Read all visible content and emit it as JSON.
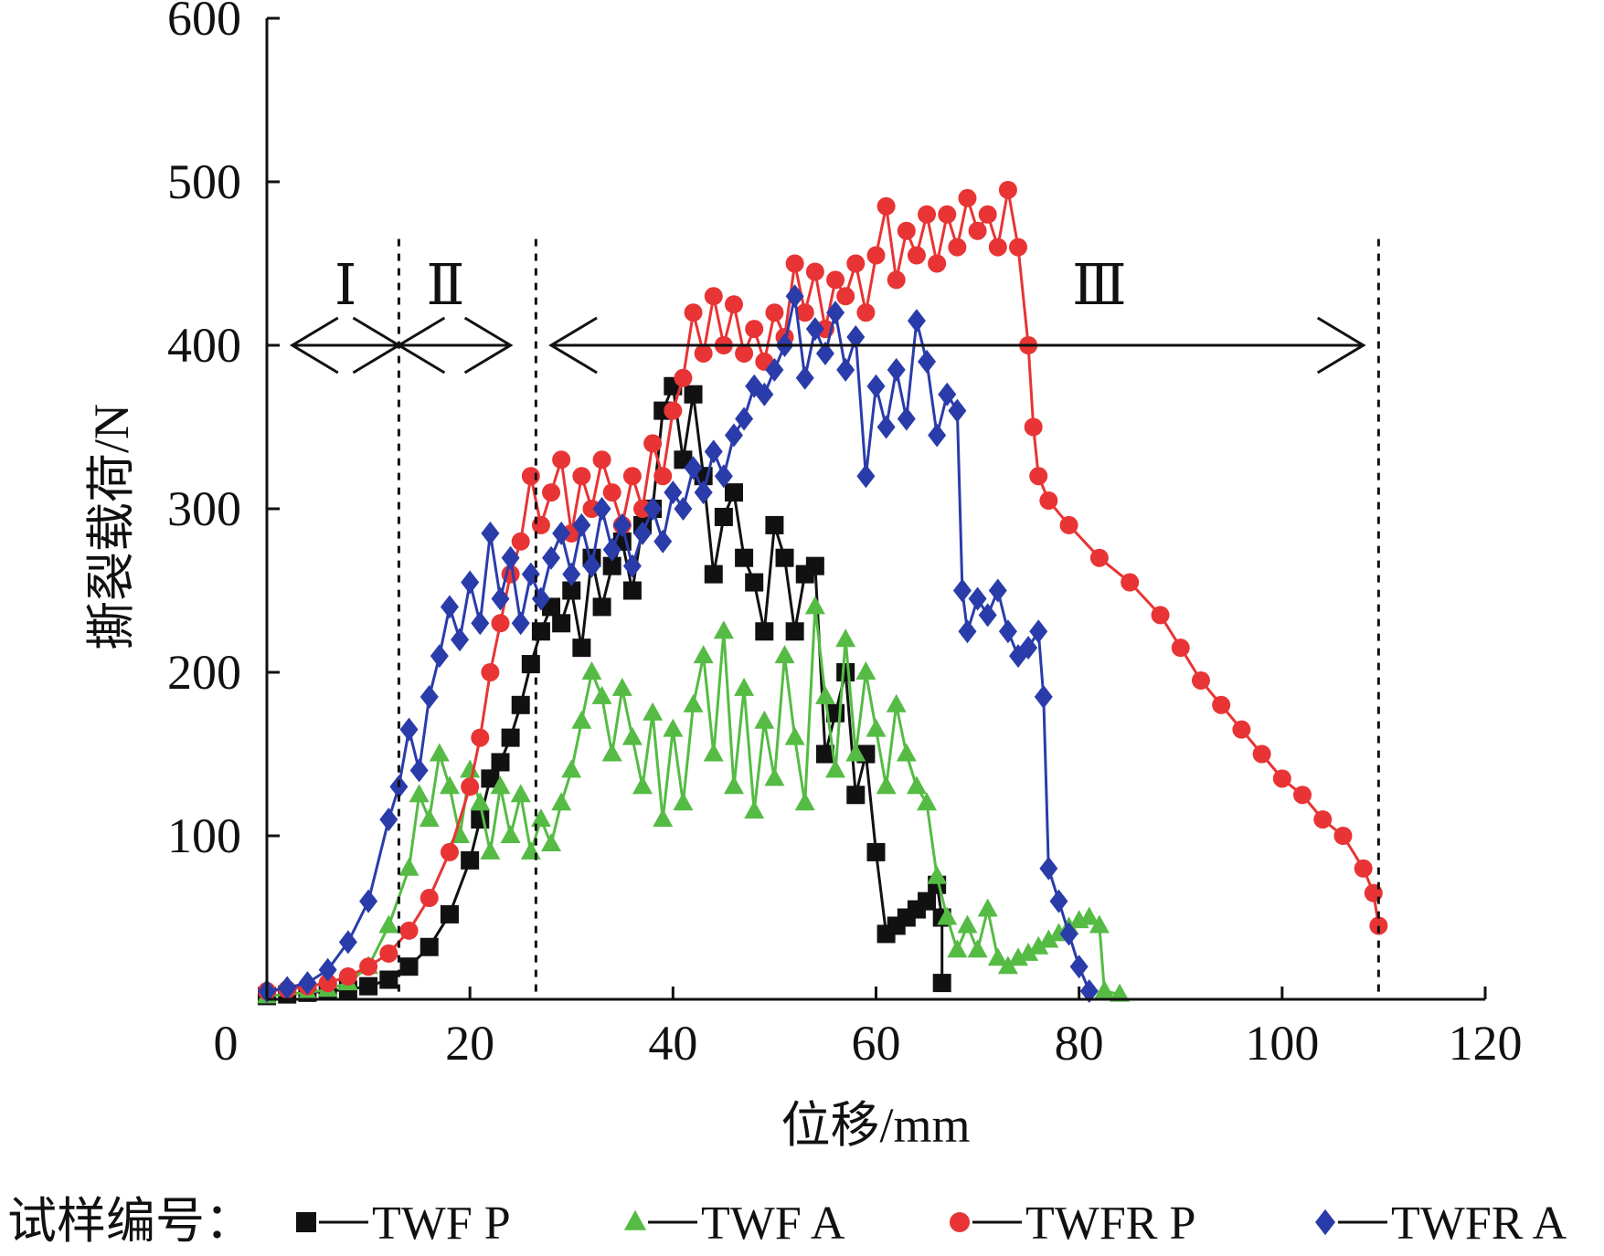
{
  "chart_data": {
    "type": "line",
    "xlabel": "位移/mm",
    "ylabel": "撕裂载荷/N",
    "xlim": [
      0,
      120
    ],
    "ylim": [
      0,
      600
    ],
    "x_ticks": [
      "0",
      "20",
      "40",
      "60",
      "80",
      "100",
      "120"
    ],
    "y_ticks": [
      "100",
      "200",
      "300",
      "400",
      "500",
      "600"
    ],
    "grid": false,
    "legend_position": "bottom",
    "legend_prefix": "试样编号：",
    "regions": [
      {
        "label": "Ⅰ",
        "from": 2.5,
        "to": 13
      },
      {
        "label": "Ⅱ",
        "from": 13,
        "to": 24
      },
      {
        "label": "Ⅲ",
        "from": 28,
        "to": 108
      }
    ],
    "region_boundaries_x": [
      13,
      26.5,
      109.5
    ],
    "region_arrow_y": 400,
    "series": [
      {
        "name": "TWF P",
        "color": "#111111",
        "marker": "square",
        "points": [
          [
            0,
            2
          ],
          [
            2,
            3
          ],
          [
            4,
            4
          ],
          [
            6,
            5
          ],
          [
            8,
            6
          ],
          [
            10,
            8
          ],
          [
            12,
            12
          ],
          [
            14,
            20
          ],
          [
            16,
            32
          ],
          [
            18,
            52
          ],
          [
            20,
            85
          ],
          [
            21,
            110
          ],
          [
            22,
            135
          ],
          [
            23,
            145
          ],
          [
            24,
            160
          ],
          [
            25,
            180
          ],
          [
            26,
            205
          ],
          [
            27,
            225
          ],
          [
            28,
            240
          ],
          [
            29,
            230
          ],
          [
            30,
            250
          ],
          [
            31,
            215
          ],
          [
            32,
            270
          ],
          [
            33,
            240
          ],
          [
            34,
            265
          ],
          [
            35,
            280
          ],
          [
            36,
            250
          ],
          [
            37,
            290
          ],
          [
            38,
            300
          ],
          [
            39,
            360
          ],
          [
            40,
            375
          ],
          [
            41,
            330
          ],
          [
            42,
            370
          ],
          [
            43,
            320
          ],
          [
            44,
            260
          ],
          [
            45,
            295
          ],
          [
            46,
            310
          ],
          [
            47,
            270
          ],
          [
            48,
            255
          ],
          [
            49,
            225
          ],
          [
            50,
            290
          ],
          [
            51,
            270
          ],
          [
            52,
            225
          ],
          [
            53,
            260
          ],
          [
            54,
            265
          ],
          [
            55,
            150
          ],
          [
            56,
            175
          ],
          [
            57,
            200
          ],
          [
            58,
            125
          ],
          [
            59,
            150
          ],
          [
            60,
            90
          ],
          [
            61,
            40
          ],
          [
            62,
            45
          ],
          [
            63,
            50
          ],
          [
            64,
            55
          ],
          [
            65,
            60
          ],
          [
            66,
            70
          ],
          [
            66.5,
            50
          ],
          [
            66.5,
            10
          ]
        ]
      },
      {
        "name": "TWF A",
        "color": "#55bb44",
        "marker": "triangle",
        "points": [
          [
            0,
            2
          ],
          [
            4,
            4
          ],
          [
            6,
            6
          ],
          [
            8,
            10
          ],
          [
            10,
            20
          ],
          [
            12,
            45
          ],
          [
            14,
            80
          ],
          [
            15,
            125
          ],
          [
            16,
            110
          ],
          [
            17,
            150
          ],
          [
            18,
            130
          ],
          [
            19,
            100
          ],
          [
            20,
            140
          ],
          [
            21,
            120
          ],
          [
            22,
            90
          ],
          [
            23,
            130
          ],
          [
            24,
            100
          ],
          [
            25,
            125
          ],
          [
            26,
            90
          ],
          [
            27,
            110
          ],
          [
            28,
            95
          ],
          [
            29,
            120
          ],
          [
            30,
            140
          ],
          [
            31,
            170
          ],
          [
            32,
            200
          ],
          [
            33,
            185
          ],
          [
            34,
            150
          ],
          [
            35,
            190
          ],
          [
            36,
            160
          ],
          [
            37,
            130
          ],
          [
            38,
            175
          ],
          [
            39,
            110
          ],
          [
            40,
            165
          ],
          [
            41,
            120
          ],
          [
            42,
            180
          ],
          [
            43,
            210
          ],
          [
            44,
            150
          ],
          [
            45,
            225
          ],
          [
            46,
            130
          ],
          [
            47,
            190
          ],
          [
            48,
            115
          ],
          [
            49,
            170
          ],
          [
            50,
            135
          ],
          [
            51,
            210
          ],
          [
            52,
            160
          ],
          [
            53,
            120
          ],
          [
            54,
            240
          ],
          [
            55,
            185
          ],
          [
            56,
            140
          ],
          [
            57,
            220
          ],
          [
            58,
            150
          ],
          [
            59,
            200
          ],
          [
            60,
            165
          ],
          [
            61,
            130
          ],
          [
            62,
            180
          ],
          [
            63,
            150
          ],
          [
            64,
            130
          ],
          [
            65,
            120
          ],
          [
            66,
            75
          ],
          [
            67,
            50
          ],
          [
            68,
            30
          ],
          [
            69,
            45
          ],
          [
            70,
            30
          ],
          [
            71,
            55
          ],
          [
            72,
            25
          ],
          [
            73,
            20
          ],
          [
            74,
            25
          ],
          [
            75,
            28
          ],
          [
            76,
            32
          ],
          [
            77,
            36
          ],
          [
            78,
            40
          ],
          [
            79,
            44
          ],
          [
            80,
            48
          ],
          [
            81,
            50
          ],
          [
            82,
            45
          ],
          [
            82.5,
            5
          ],
          [
            84,
            3
          ]
        ]
      },
      {
        "name": "TWFR P",
        "color": "#e83434",
        "marker": "circle",
        "points": [
          [
            0,
            5
          ],
          [
            2,
            6
          ],
          [
            4,
            8
          ],
          [
            6,
            10
          ],
          [
            8,
            14
          ],
          [
            10,
            20
          ],
          [
            12,
            28
          ],
          [
            14,
            42
          ],
          [
            16,
            62
          ],
          [
            18,
            90
          ],
          [
            20,
            130
          ],
          [
            21,
            160
          ],
          [
            22,
            200
          ],
          [
            23,
            230
          ],
          [
            24,
            260
          ],
          [
            25,
            280
          ],
          [
            26,
            320
          ],
          [
            27,
            290
          ],
          [
            28,
            310
          ],
          [
            29,
            330
          ],
          [
            30,
            285
          ],
          [
            31,
            320
          ],
          [
            32,
            300
          ],
          [
            33,
            330
          ],
          [
            34,
            310
          ],
          [
            35,
            290
          ],
          [
            36,
            320
          ],
          [
            37,
            300
          ],
          [
            38,
            340
          ],
          [
            39,
            320
          ],
          [
            40,
            360
          ],
          [
            41,
            380
          ],
          [
            42,
            420
          ],
          [
            43,
            395
          ],
          [
            44,
            430
          ],
          [
            45,
            400
          ],
          [
            46,
            425
          ],
          [
            47,
            395
          ],
          [
            48,
            410
          ],
          [
            49,
            390
          ],
          [
            50,
            420
          ],
          [
            51,
            405
          ],
          [
            52,
            450
          ],
          [
            53,
            420
          ],
          [
            54,
            445
          ],
          [
            55,
            410
          ],
          [
            56,
            440
          ],
          [
            57,
            430
          ],
          [
            58,
            450
          ],
          [
            59,
            420
          ],
          [
            60,
            455
          ],
          [
            61,
            485
          ],
          [
            62,
            440
          ],
          [
            63,
            470
          ],
          [
            64,
            455
          ],
          [
            65,
            480
          ],
          [
            66,
            450
          ],
          [
            67,
            480
          ],
          [
            68,
            460
          ],
          [
            69,
            490
          ],
          [
            70,
            470
          ],
          [
            71,
            480
          ],
          [
            72,
            460
          ],
          [
            73,
            495
          ],
          [
            74,
            460
          ],
          [
            75,
            400
          ],
          [
            75.5,
            350
          ],
          [
            76,
            320
          ],
          [
            77,
            305
          ],
          [
            79,
            290
          ],
          [
            82,
            270
          ],
          [
            85,
            255
          ],
          [
            88,
            235
          ],
          [
            90,
            215
          ],
          [
            92,
            195
          ],
          [
            94,
            180
          ],
          [
            96,
            165
          ],
          [
            98,
            150
          ],
          [
            100,
            135
          ],
          [
            102,
            125
          ],
          [
            104,
            110
          ],
          [
            106,
            100
          ],
          [
            108,
            80
          ],
          [
            109,
            65
          ],
          [
            109.5,
            45
          ]
        ]
      },
      {
        "name": "TWFR A",
        "color": "#2a3caa",
        "marker": "diamond",
        "points": [
          [
            0,
            5
          ],
          [
            2,
            7
          ],
          [
            4,
            10
          ],
          [
            6,
            18
          ],
          [
            8,
            35
          ],
          [
            10,
            60
          ],
          [
            12,
            110
          ],
          [
            13,
            130
          ],
          [
            14,
            165
          ],
          [
            15,
            140
          ],
          [
            16,
            185
          ],
          [
            17,
            210
          ],
          [
            18,
            240
          ],
          [
            19,
            220
          ],
          [
            20,
            255
          ],
          [
            21,
            230
          ],
          [
            22,
            285
          ],
          [
            23,
            245
          ],
          [
            24,
            270
          ],
          [
            25,
            230
          ],
          [
            26,
            260
          ],
          [
            27,
            245
          ],
          [
            28,
            270
          ],
          [
            29,
            285
          ],
          [
            30,
            260
          ],
          [
            31,
            290
          ],
          [
            32,
            265
          ],
          [
            33,
            300
          ],
          [
            34,
            275
          ],
          [
            35,
            290
          ],
          [
            36,
            265
          ],
          [
            37,
            285
          ],
          [
            38,
            300
          ],
          [
            39,
            280
          ],
          [
            40,
            310
          ],
          [
            41,
            300
          ],
          [
            42,
            325
          ],
          [
            43,
            310
          ],
          [
            44,
            335
          ],
          [
            45,
            320
          ],
          [
            46,
            345
          ],
          [
            47,
            355
          ],
          [
            48,
            375
          ],
          [
            49,
            370
          ],
          [
            50,
            385
          ],
          [
            51,
            400
          ],
          [
            52,
            430
          ],
          [
            53,
            380
          ],
          [
            54,
            410
          ],
          [
            55,
            395
          ],
          [
            56,
            420
          ],
          [
            57,
            385
          ],
          [
            58,
            405
          ],
          [
            59,
            320
          ],
          [
            60,
            375
          ],
          [
            61,
            350
          ],
          [
            62,
            385
          ],
          [
            63,
            355
          ],
          [
            64,
            415
          ],
          [
            65,
            390
          ],
          [
            66,
            345
          ],
          [
            67,
            370
          ],
          [
            68,
            360
          ],
          [
            68.5,
            250
          ],
          [
            69,
            225
          ],
          [
            70,
            245
          ],
          [
            71,
            235
          ],
          [
            72,
            250
          ],
          [
            73,
            225
          ],
          [
            74,
            210
          ],
          [
            75,
            215
          ],
          [
            76,
            225
          ],
          [
            76.5,
            185
          ],
          [
            77,
            80
          ],
          [
            78,
            60
          ],
          [
            79,
            40
          ],
          [
            80,
            20
          ],
          [
            81,
            5
          ]
        ]
      }
    ]
  }
}
